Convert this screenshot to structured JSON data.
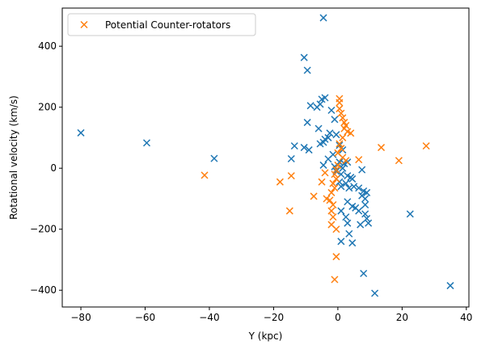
{
  "chart_data": {
    "type": "scatter",
    "title": "",
    "xlabel": "Y (kpc)",
    "ylabel": "Rotational velocity (km/s)",
    "xlim": [
      -85.8,
      40.8
    ],
    "ylim": [
      -455,
      525
    ],
    "xticks": [
      -80,
      -60,
      -40,
      -20,
      0,
      20,
      40
    ],
    "yticks": [
      -400,
      -200,
      0,
      200,
      400
    ],
    "grid": false,
    "legend_position": "upper left",
    "marker": "x",
    "series": [
      {
        "name": "",
        "color": "#1f77b4",
        "points": [
          [
            -80.0,
            116
          ],
          [
            -59.5,
            83
          ],
          [
            -38.5,
            32
          ],
          [
            -4.5,
            493
          ],
          [
            -10.5,
            363
          ],
          [
            -9.5,
            321
          ],
          [
            -5.0,
            226
          ],
          [
            -4.0,
            231
          ],
          [
            -5.5,
            210
          ],
          [
            -8.5,
            205
          ],
          [
            -6.5,
            200
          ],
          [
            -2.0,
            190
          ],
          [
            -9.5,
            150
          ],
          [
            -6.0,
            130
          ],
          [
            -1.0,
            160
          ],
          [
            -0.5,
            110
          ],
          [
            -13.5,
            73
          ],
          [
            -10.5,
            68
          ],
          [
            -9.0,
            60
          ],
          [
            -14.5,
            31
          ],
          [
            -5.5,
            80
          ],
          [
            -4.5,
            85
          ],
          [
            -4.0,
            95
          ],
          [
            -3.0,
            100
          ],
          [
            -2.5,
            115
          ],
          [
            0.5,
            75
          ],
          [
            1.5,
            60
          ],
          [
            -1.5,
            45
          ],
          [
            -3.0,
            30
          ],
          [
            -4.5,
            10
          ],
          [
            -1.0,
            5
          ],
          [
            0.5,
            20
          ],
          [
            2.0,
            15
          ],
          [
            3.0,
            20
          ],
          [
            1.5,
            0
          ],
          [
            -0.5,
            -10
          ],
          [
            1.0,
            -20
          ],
          [
            3.0,
            -25
          ],
          [
            4.0,
            -30
          ],
          [
            4.5,
            -35
          ],
          [
            0.5,
            -45
          ],
          [
            2.5,
            -50
          ],
          [
            1.0,
            -60
          ],
          [
            3.5,
            -65
          ],
          [
            5.0,
            -60
          ],
          [
            6.5,
            -65
          ],
          [
            7.5,
            -5
          ],
          [
            8.0,
            -75
          ],
          [
            9.0,
            -80
          ],
          [
            7.5,
            -90
          ],
          [
            8.5,
            -100
          ],
          [
            8.5,
            -120
          ],
          [
            3.0,
            -110
          ],
          [
            4.5,
            -125
          ],
          [
            5.5,
            -130
          ],
          [
            6.5,
            -140
          ],
          [
            8.5,
            -150
          ],
          [
            9.0,
            -165
          ],
          [
            9.5,
            -180
          ],
          [
            7.0,
            -185
          ],
          [
            3.0,
            -180
          ],
          [
            1.0,
            -140
          ],
          [
            2.5,
            -160
          ],
          [
            3.5,
            -215
          ],
          [
            4.5,
            -245
          ],
          [
            1.0,
            -240
          ],
          [
            22.5,
            -150
          ],
          [
            8.0,
            -345
          ],
          [
            11.5,
            -410
          ],
          [
            35.0,
            -385
          ]
        ]
      },
      {
        "name": "Potential Counter-rotators",
        "color": "#ff7f0e",
        "points": [
          [
            0.5,
            228
          ],
          [
            0.5,
            215
          ],
          [
            0.5,
            195
          ],
          [
            1.0,
            180
          ],
          [
            1.5,
            165
          ],
          [
            2.0,
            150
          ],
          [
            2.5,
            140
          ],
          [
            2.0,
            130
          ],
          [
            3.0,
            120
          ],
          [
            4.0,
            115
          ],
          [
            1.5,
            100
          ],
          [
            0.5,
            80
          ],
          [
            1.0,
            65
          ],
          [
            0.0,
            50
          ],
          [
            1.5,
            35
          ],
          [
            2.5,
            25
          ],
          [
            0.0,
            10
          ],
          [
            -0.5,
            -5
          ],
          [
            -1.0,
            -20
          ],
          [
            -0.5,
            -35
          ],
          [
            -1.5,
            -50
          ],
          [
            -1.0,
            -65
          ],
          [
            -2.0,
            -80
          ],
          [
            -3.5,
            -100
          ],
          [
            -2.5,
            -105
          ],
          [
            -4.0,
            -15
          ],
          [
            -5.0,
            -45
          ],
          [
            -7.5,
            -92
          ],
          [
            -1.5,
            -120
          ],
          [
            -2.0,
            -140
          ],
          [
            -1.5,
            -160
          ],
          [
            -2.0,
            -185
          ],
          [
            -0.5,
            -200
          ],
          [
            -0.5,
            -290
          ],
          [
            -1.0,
            -365
          ],
          [
            -15.0,
            -140
          ],
          [
            -18.0,
            -45
          ],
          [
            -14.5,
            -25
          ],
          [
            -41.5,
            -23
          ],
          [
            6.5,
            28
          ],
          [
            13.5,
            68
          ],
          [
            19.0,
            25
          ],
          [
            27.5,
            73
          ]
        ]
      }
    ]
  }
}
